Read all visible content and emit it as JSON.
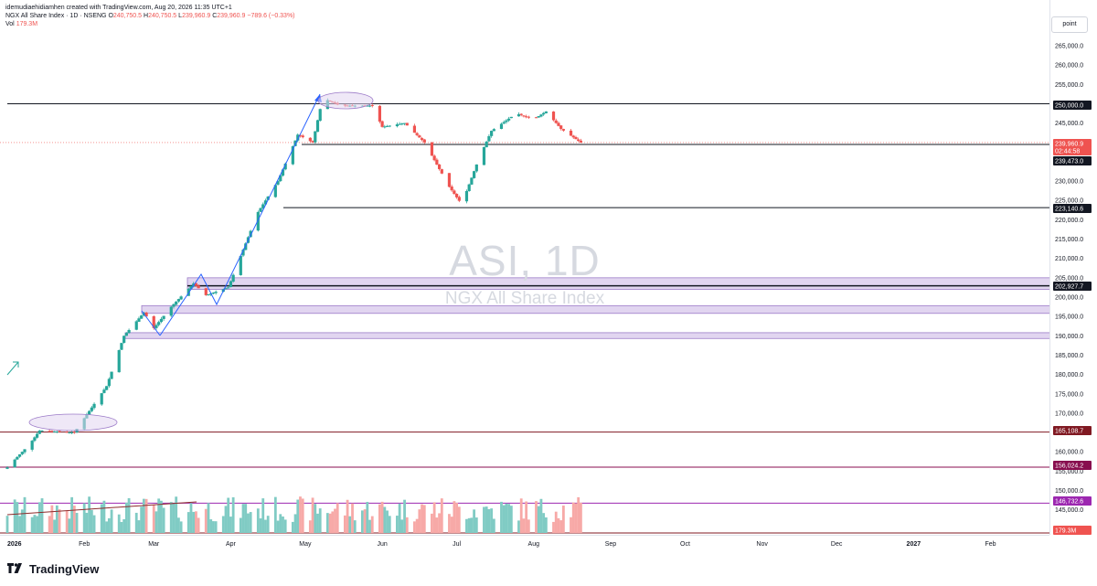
{
  "header": {
    "attribution": "idemudiaehidiamhen created with TradingView.com, Aug 20, 2026 11:35 UTC+1",
    "symbol_line": "NGX All Share Index · 1D · NSENG",
    "ohlc": {
      "o_label": "O",
      "o": "240,750.5",
      "h_label": "H",
      "h": "240,750.5",
      "l_label": "L",
      "l": "239,960.9",
      "c_label": "C",
      "c": "239,960.9",
      "change": "−789.6 (−0.33%)"
    },
    "vol_label": "Vol",
    "vol_value": "179.3M"
  },
  "watermark": {
    "title": "ASI, 1D",
    "subtitle": "NGX All Share Index"
  },
  "scale_mode": "point",
  "price_axis": {
    "ticks": [
      "265,000.0",
      "260,000.0",
      "255,000.0",
      "245,000.0",
      "235,000.0",
      "230,000.0",
      "225,000.0",
      "220,000.0",
      "215,000.0",
      "210,000.0",
      "205,000.0",
      "200,000.0",
      "195,000.0",
      "190,000.0",
      "185,000.0",
      "180,000.0",
      "175,000.0",
      "170,000.0",
      "160,000.0",
      "155,000.0",
      "150,000.0",
      "145,000.0",
      "140,000.0"
    ],
    "labels": [
      {
        "text": "250,000.0",
        "bg": "#131722",
        "fg": "#ffffff"
      },
      {
        "text": "239,960.9",
        "bg": "#ef5350",
        "fg": "#ffffff"
      },
      {
        "text": "02:44:58",
        "bg": "#ef5350",
        "fg": "#ffffff"
      },
      {
        "text": "239,473.0",
        "bg": "#131722",
        "fg": "#ffffff"
      },
      {
        "text": "223,140.6",
        "bg": "#131722",
        "fg": "#ffffff"
      },
      {
        "text": "202,927.7",
        "bg": "#131722",
        "fg": "#ffffff"
      },
      {
        "text": "165,108.7",
        "bg": "#801922",
        "fg": "#ffffff"
      },
      {
        "text": "156,024.2",
        "bg": "#880e4f",
        "fg": "#ffffff"
      },
      {
        "text": "146,732.6",
        "bg": "#9c27b0",
        "fg": "#ffffff"
      },
      {
        "text": "179.3M",
        "bg": "#ef5350",
        "fg": "#ffffff"
      }
    ]
  },
  "time_axis": {
    "labels": [
      "2026",
      "Feb",
      "Mar",
      "Apr",
      "May",
      "Jun",
      "Jul",
      "Aug",
      "Sep",
      "Oct",
      "Nov",
      "Dec",
      "2027",
      "Feb",
      "Mar"
    ]
  },
  "footer": {
    "brand": "TradingView"
  },
  "colors": {
    "up": "#26a69a",
    "down": "#ef5350",
    "vol_up": "#80cbc4",
    "vol_down": "#f7a9a7",
    "zone_fill": "#e1d5f0",
    "zone_stroke": "#9c7bc8",
    "trend": "#2962ff"
  },
  "chart_data": {
    "type": "candlestick",
    "title": "NGX All Share Index · 1D · NSENG",
    "ylim": [
      137000,
      268000
    ],
    "x": [
      "2026",
      "Feb",
      "Mar",
      "Apr",
      "May",
      "Jun",
      "Jul",
      "Aug",
      "Sep",
      "Oct",
      "Nov",
      "Dec",
      "2027",
      "Feb",
      "Mar"
    ],
    "close_anchors": [
      {
        "date": "2026-01-01",
        "value": 156000
      },
      {
        "date": "2026-01-10",
        "value": 162000
      },
      {
        "date": "2026-01-14",
        "value": 165500
      },
      {
        "date": "2026-01-28",
        "value": 165000
      },
      {
        "date": "2026-02-10",
        "value": 177000
      },
      {
        "date": "2026-02-17",
        "value": 190000
      },
      {
        "date": "2026-02-25",
        "value": 196000
      },
      {
        "date": "2026-03-01",
        "value": 192000
      },
      {
        "date": "2026-03-08",
        "value": 197500
      },
      {
        "date": "2026-03-17",
        "value": 203500
      },
      {
        "date": "2026-03-22",
        "value": 200500
      },
      {
        "date": "2026-03-31",
        "value": 202500
      },
      {
        "date": "2026-04-12",
        "value": 222000
      },
      {
        "date": "2026-04-20",
        "value": 230000
      },
      {
        "date": "2026-04-28",
        "value": 242000
      },
      {
        "date": "2026-05-04",
        "value": 240000
      },
      {
        "date": "2026-05-08",
        "value": 251500
      },
      {
        "date": "2026-05-15",
        "value": 249500
      },
      {
        "date": "2026-05-28",
        "value": 249500
      },
      {
        "date": "2026-06-01",
        "value": 244000
      },
      {
        "date": "2026-06-10",
        "value": 245000
      },
      {
        "date": "2026-06-18",
        "value": 240000
      },
      {
        "date": "2026-06-28",
        "value": 228500
      },
      {
        "date": "2026-07-03",
        "value": 224000
      },
      {
        "date": "2026-07-10",
        "value": 236000
      },
      {
        "date": "2026-07-15",
        "value": 243000
      },
      {
        "date": "2026-07-25",
        "value": 247500
      },
      {
        "date": "2026-08-01",
        "value": 246000
      },
      {
        "date": "2026-08-06",
        "value": 248000
      },
      {
        "date": "2026-08-12",
        "value": 243500
      },
      {
        "date": "2026-08-20",
        "value": 239961
      }
    ],
    "volume_spikes": [
      {
        "date": "2026-02-21",
        "value_relative": 1.0
      },
      {
        "date": "2026-08-08",
        "value_relative": 1.06
      }
    ],
    "horizontal_levels": [
      250000,
      239473.0,
      223140.6,
      202927.7,
      165108.7,
      156024.2,
      146732.6
    ],
    "zones": [
      [
        202000,
        205000
      ],
      [
        195800,
        197800
      ],
      [
        189300,
        190800
      ]
    ],
    "last_close": 239960.9
  }
}
